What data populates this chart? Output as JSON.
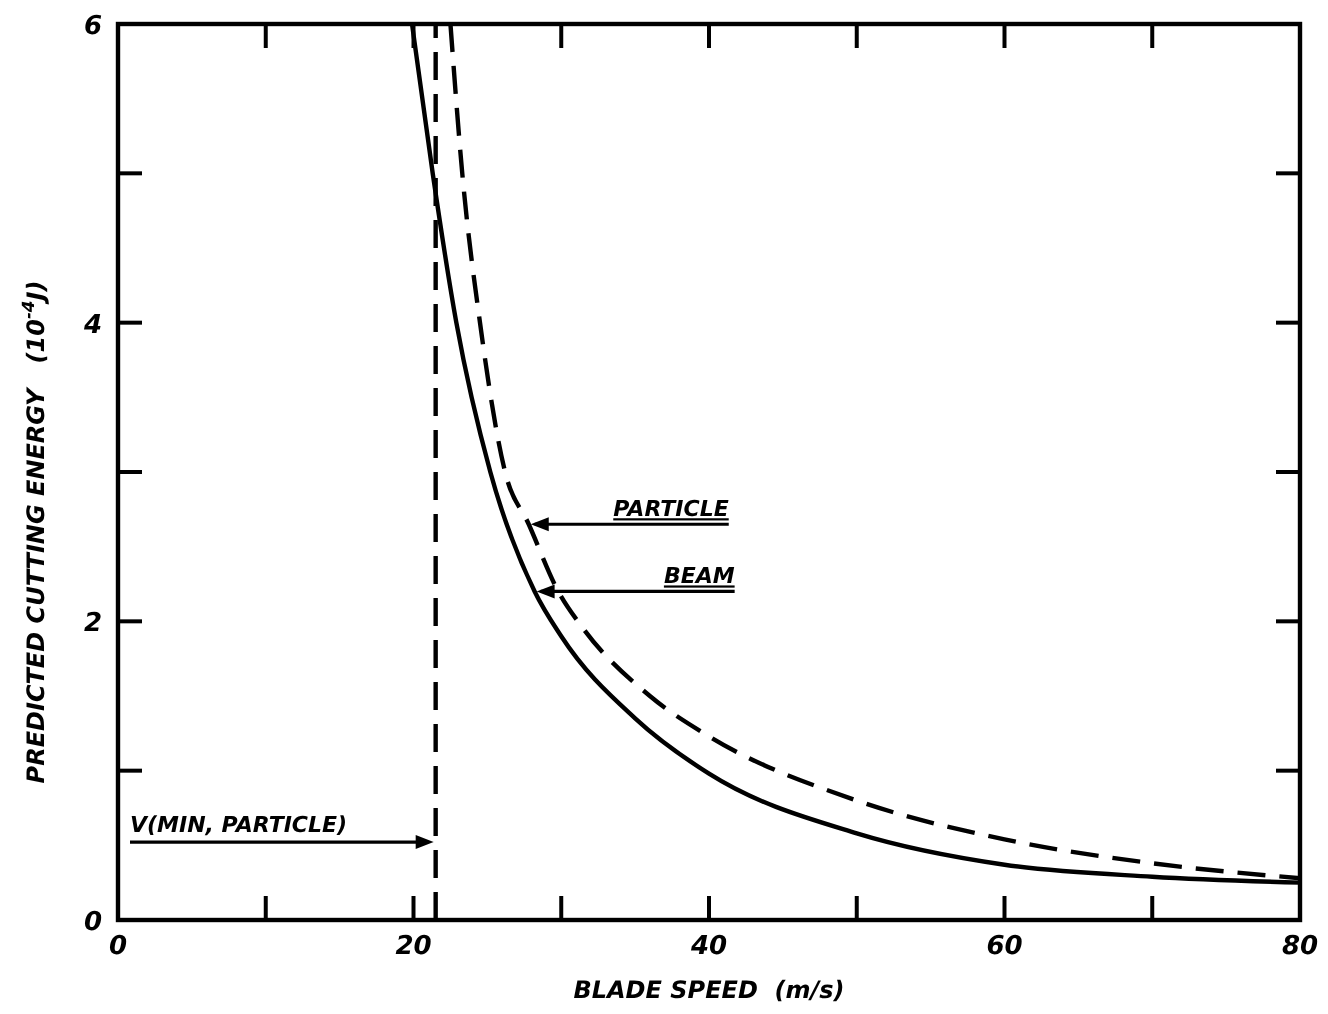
{
  "chart_data": {
    "type": "line",
    "xlabel": "BLADE SPEED  (m/s)",
    "ylabel": "PREDICTED CUTTING ENERGY   (10$^{-4}$J)",
    "xlim": [
      0,
      80
    ],
    "ylim": [
      0,
      6
    ],
    "xticks": [
      0,
      {
        "value": 10,
        "label": null
      },
      20,
      {
        "value": 30,
        "label": null
      },
      40,
      {
        "value": 50,
        "label": null
      },
      60,
      {
        "value": 70,
        "label": null
      },
      80
    ],
    "yticks": [
      0,
      {
        "value": 1,
        "label": null
      },
      2,
      {
        "value": 3,
        "label": null
      },
      4,
      {
        "value": 5,
        "label": null
      },
      6
    ],
    "grid": false,
    "marker": "none",
    "series": [
      {
        "color": "#000000",
        "line_style": "solid",
        "x": [
          19.9,
          21.3,
          22.9,
          25.2,
          28.2,
          30,
          35,
          40,
          50,
          60,
          70,
          80
        ],
        "values": [
          6,
          5,
          4,
          3,
          2.2,
          1.9,
          1.35,
          0.98,
          0.58,
          0.37,
          0.29,
          0.25
        ]
      },
      {
        "color": "#000000",
        "line_style": "dashed",
        "x": [
          22.5,
          23.3,
          24.5,
          26.2,
          27.8,
          29.8,
          31.5,
          36,
          40,
          50,
          60,
          70,
          80
        ],
        "values": [
          6,
          5,
          4,
          3,
          2.65,
          2.2,
          1.95,
          1.5,
          1.23,
          0.8,
          0.54,
          0.38,
          0.28
        ]
      }
    ],
    "ref_lines": [
      {
        "axis": "x",
        "value": 21.5,
        "label": "V(MIN, PARTICLE)",
        "line_style": "dashed",
        "color": "#000000"
      }
    ],
    "annotations": [
      {
        "text": "PARTICLE",
        "x": 27.8,
        "y": 2.65
      },
      {
        "text": "BEAM",
        "x": 28.2,
        "y": 2.2
      }
    ]
  }
}
